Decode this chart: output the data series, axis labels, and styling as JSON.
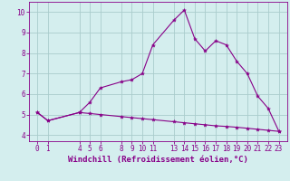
{
  "upper_x": [
    0,
    1,
    4,
    5,
    6,
    8,
    9,
    10,
    11,
    13,
    14,
    15,
    16,
    17,
    18,
    19,
    20,
    21,
    22,
    23
  ],
  "upper_y": [
    5.1,
    4.7,
    5.1,
    5.6,
    6.3,
    6.6,
    6.7,
    7.0,
    8.4,
    9.6,
    10.1,
    8.7,
    8.1,
    8.6,
    8.4,
    7.6,
    7.0,
    5.9,
    5.3,
    4.2
  ],
  "lower_x": [
    0,
    1,
    4,
    5,
    6,
    8,
    9,
    10,
    11,
    13,
    14,
    15,
    16,
    17,
    18,
    19,
    20,
    21,
    22,
    23
  ],
  "lower_y": [
    5.1,
    4.7,
    5.1,
    5.05,
    5.0,
    4.9,
    4.85,
    4.8,
    4.75,
    4.65,
    4.6,
    4.55,
    4.5,
    4.45,
    4.42,
    4.38,
    4.33,
    4.28,
    4.23,
    4.18
  ],
  "line_color": "#880088",
  "marker": "*",
  "markersize": 3,
  "bg_color": "#d4eeee",
  "grid_color": "#aacccc",
  "xlabel": "Windchill (Refroidissement éolien,°C)",
  "xlabel_fontsize": 6.5,
  "tick_fontsize": 5.5,
  "ylim": [
    3.7,
    10.5
  ],
  "xlim": [
    -0.8,
    23.8
  ],
  "yticks": [
    4,
    5,
    6,
    7,
    8,
    9,
    10
  ],
  "xticks": [
    0,
    1,
    4,
    5,
    6,
    8,
    9,
    10,
    11,
    13,
    14,
    15,
    16,
    17,
    18,
    19,
    20,
    21,
    22,
    23
  ]
}
